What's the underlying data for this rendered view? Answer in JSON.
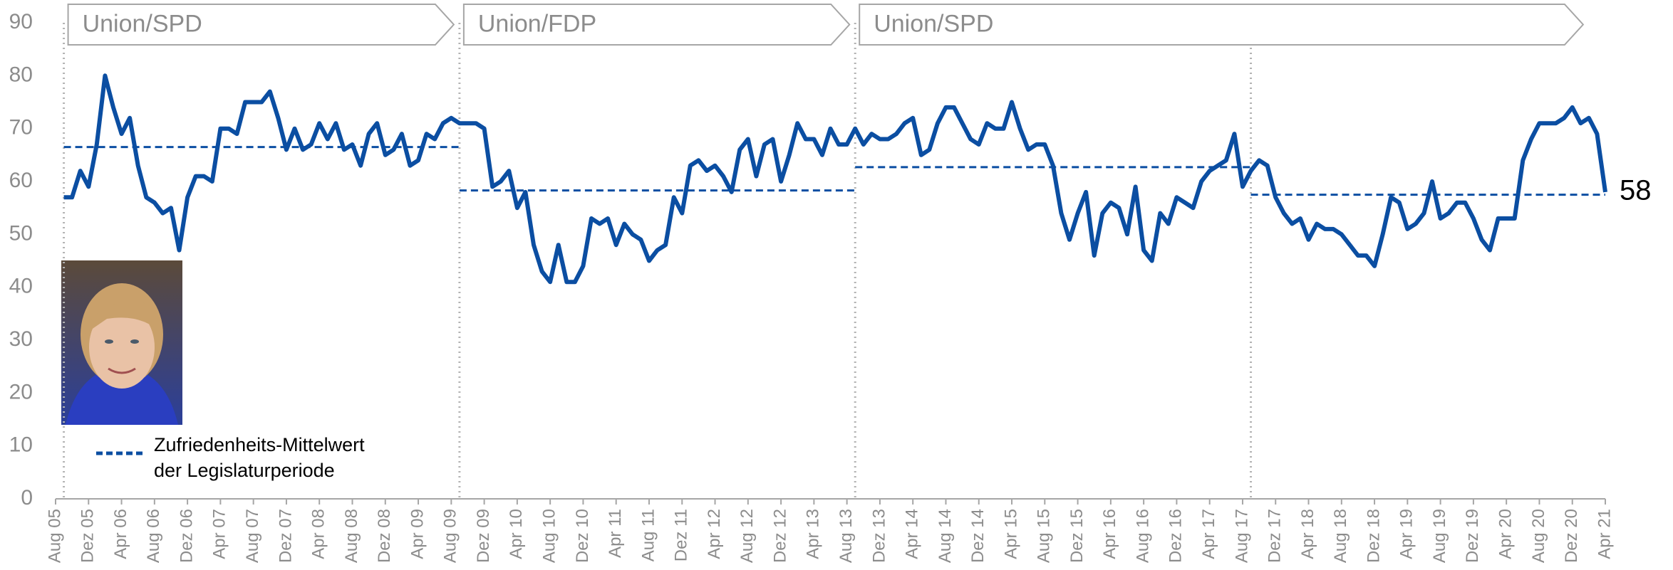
{
  "chart_data": {
    "type": "line",
    "x": [
      "Aug 05",
      "Sep 05",
      "Okt 05",
      "Nov 05",
      "Dez 05",
      "Jan 06",
      "Feb 06",
      "Mär 06",
      "Apr 06",
      "Mai 06",
      "Jun 06",
      "Jul 06",
      "Aug 06",
      "Sep 06",
      "Okt 06",
      "Nov 06",
      "Dez 06",
      "Jan 07",
      "Feb 07",
      "Mär 07",
      "Apr 07",
      "Mai 07",
      "Jun 07",
      "Jul 07",
      "Aug 07",
      "Sep 07",
      "Okt 07",
      "Nov 07",
      "Dez 07",
      "Jan 08",
      "Feb 08",
      "Mär 08",
      "Apr 08",
      "Mai 08",
      "Jun 08",
      "Jul 08",
      "Aug 08",
      "Sep 08",
      "Okt 08",
      "Nov 08",
      "Dez 08",
      "Jan 09",
      "Feb 09",
      "Mär 09",
      "Apr 09",
      "Mai 09",
      "Jun 09",
      "Jul 09",
      "Aug 09",
      "Sep 09",
      "Okt 09",
      "Nov 09",
      "Dez 09",
      "Jan 10",
      "Feb 10",
      "Mär 10",
      "Apr 10",
      "Mai 10",
      "Jun 10",
      "Jul 10",
      "Aug 10",
      "Sep 10",
      "Okt 10",
      "Nov 10",
      "Dez 10",
      "Jan 11",
      "Feb 11",
      "Mär 11",
      "Apr 11",
      "Mai 11",
      "Jun 11",
      "Jul 11",
      "Aug 11",
      "Sep 11",
      "Okt 11",
      "Nov 11",
      "Dez 11",
      "Jan 12",
      "Feb 12",
      "Mär 12",
      "Apr 12",
      "Mai 12",
      "Jun 12",
      "Jul 12",
      "Aug 12",
      "Sep 12",
      "Okt 12",
      "Nov 12",
      "Dez 12",
      "Jan 13",
      "Feb 13",
      "Mär 13",
      "Apr 13",
      "Mai 13",
      "Jun 13",
      "Jul 13",
      "Aug 13",
      "Sep 13",
      "Okt 13",
      "Nov 13",
      "Dez 13",
      "Jan 14",
      "Feb 14",
      "Mär 14",
      "Apr 14",
      "Mai 14",
      "Jun 14",
      "Jul 14",
      "Aug 14",
      "Sep 14",
      "Okt 14",
      "Nov 14",
      "Dez 14",
      "Jan 15",
      "Feb 15",
      "Mär 15",
      "Apr 15",
      "Mai 15",
      "Jun 15",
      "Jul 15",
      "Aug 15",
      "Sep 15",
      "Okt 15",
      "Nov 15",
      "Dez 15",
      "Jan 16",
      "Feb 16",
      "Mär 16",
      "Apr 16",
      "Mai 16",
      "Jun 16",
      "Jul 16",
      "Aug 16",
      "Sep 16",
      "Okt 16",
      "Nov 16",
      "Dez 16",
      "Jan 17",
      "Feb 17",
      "Mär 17",
      "Apr 17",
      "Mai 17",
      "Jun 17",
      "Jul 17",
      "Aug 17",
      "Sep 17",
      "Okt 17",
      "Nov 17",
      "Dez 17",
      "Jan 18",
      "Feb 18",
      "Mär 18",
      "Apr 18",
      "Mai 18",
      "Jun 18",
      "Jul 18",
      "Aug 18",
      "Sep 18",
      "Okt 18",
      "Nov 18",
      "Dez 18",
      "Jan 19",
      "Feb 19",
      "Mär 19",
      "Apr 19",
      "Mai 19",
      "Jun 19",
      "Jul 19",
      "Aug 19",
      "Sep 19",
      "Okt 19",
      "Nov 19",
      "Dez 19",
      "Jan 20",
      "Feb 20",
      "Mär 20",
      "Apr 20",
      "Mai 20",
      "Jun 20",
      "Jul 20",
      "Aug 20",
      "Sep 20",
      "Okt 20",
      "Nov 20",
      "Dez 20",
      "Jan 21",
      "Feb 21",
      "Mär 21",
      "Apr 21"
    ],
    "series": [
      {
        "color": "#0b4ea2",
        "values": [
          null,
          57,
          57,
          62,
          59,
          67,
          80,
          74,
          69,
          72,
          63,
          57,
          56,
          54,
          55,
          47,
          57,
          61,
          61,
          60,
          70,
          70,
          69,
          75,
          75,
          75,
          77,
          72,
          66,
          70,
          66,
          67,
          71,
          68,
          71,
          66,
          67,
          63,
          69,
          71,
          65,
          66,
          69,
          63,
          64,
          69,
          68,
          71,
          72,
          71,
          71,
          71,
          70,
          59,
          60,
          62,
          55,
          58,
          48,
          43,
          41,
          48,
          41,
          41,
          44,
          53,
          52,
          53,
          48,
          52,
          50,
          49,
          45,
          47,
          48,
          57,
          54,
          63,
          64,
          62,
          63,
          61,
          58,
          66,
          68,
          61,
          67,
          68,
          60,
          65,
          71,
          68,
          68,
          65,
          70,
          67,
          67,
          70,
          67,
          69,
          68,
          68,
          69,
          71,
          72,
          65,
          66,
          71,
          74,
          74,
          71,
          68,
          67,
          71,
          70,
          70,
          75,
          70,
          66,
          67,
          67,
          63,
          54,
          49,
          54,
          58,
          46,
          54,
          56,
          55,
          50,
          59,
          47,
          45,
          54,
          52,
          57,
          56,
          55,
          60,
          62,
          63,
          64,
          69,
          59,
          62,
          64,
          63,
          57,
          54,
          52,
          53,
          49,
          52,
          51,
          51,
          50,
          48,
          46,
          46,
          44,
          50,
          57,
          56,
          51,
          52,
          54,
          60,
          53,
          54,
          56,
          56,
          53,
          49,
          47,
          53,
          53,
          53,
          64,
          68,
          71,
          71,
          71,
          72,
          74,
          71,
          72,
          69,
          58
        ]
      }
    ],
    "xticks": [
      "Aug 05",
      "Dez 05",
      "Apr 06",
      "Aug 06",
      "Dez 06",
      "Apr 07",
      "Aug 07",
      "Dez 07",
      "Apr 08",
      "Aug 08",
      "Dez 08",
      "Apr 09",
      "Aug 09",
      "Dez 09",
      "Apr 10",
      "Aug 10",
      "Dez 10",
      "Apr 11",
      "Aug 11",
      "Dez 11",
      "Apr 12",
      "Aug 12",
      "Dez 12",
      "Apr 13",
      "Aug 13",
      "Dez 13",
      "Apr 14",
      "Aug 14",
      "Dez 14",
      "Apr 15",
      "Aug 15",
      "Dez 15",
      "Apr 16",
      "Aug 16",
      "Dez 16",
      "Apr 17",
      "Aug 17",
      "Dez 17",
      "Apr 18",
      "Aug 18",
      "Dez 18",
      "Apr 19",
      "Aug 19",
      "Dez 19",
      "Apr 20",
      "Aug 20",
      "Dez 20",
      "Apr 21"
    ],
    "ylim": [
      0,
      90
    ],
    "yticks": [
      0,
      10,
      20,
      30,
      40,
      50,
      60,
      70,
      80,
      90
    ],
    "periods": [
      {
        "start": "Sep 05",
        "end": "Sep 09",
        "mean": 66.5
      },
      {
        "start": "Sep 09",
        "end": "Sep 13",
        "mean": 58.3
      },
      {
        "start": "Sep 13",
        "end": "Sep 17",
        "mean": 62.7
      },
      {
        "start": "Sep 17",
        "end": "Apr 21",
        "mean": 57.5
      }
    ],
    "coalitions": [
      {
        "label": "Union/SPD",
        "start": "Sep 05",
        "end": "Sep 09"
      },
      {
        "label": "Union/FDP",
        "start": "Sep 09",
        "end": "Sep 13"
      },
      {
        "label": "Union/SPD",
        "start": "Sep 13",
        "end": "Feb 21"
      }
    ],
    "legend": [
      "Zufriedenheits-Mittelwert",
      "der Legislaturperiode"
    ]
  }
}
